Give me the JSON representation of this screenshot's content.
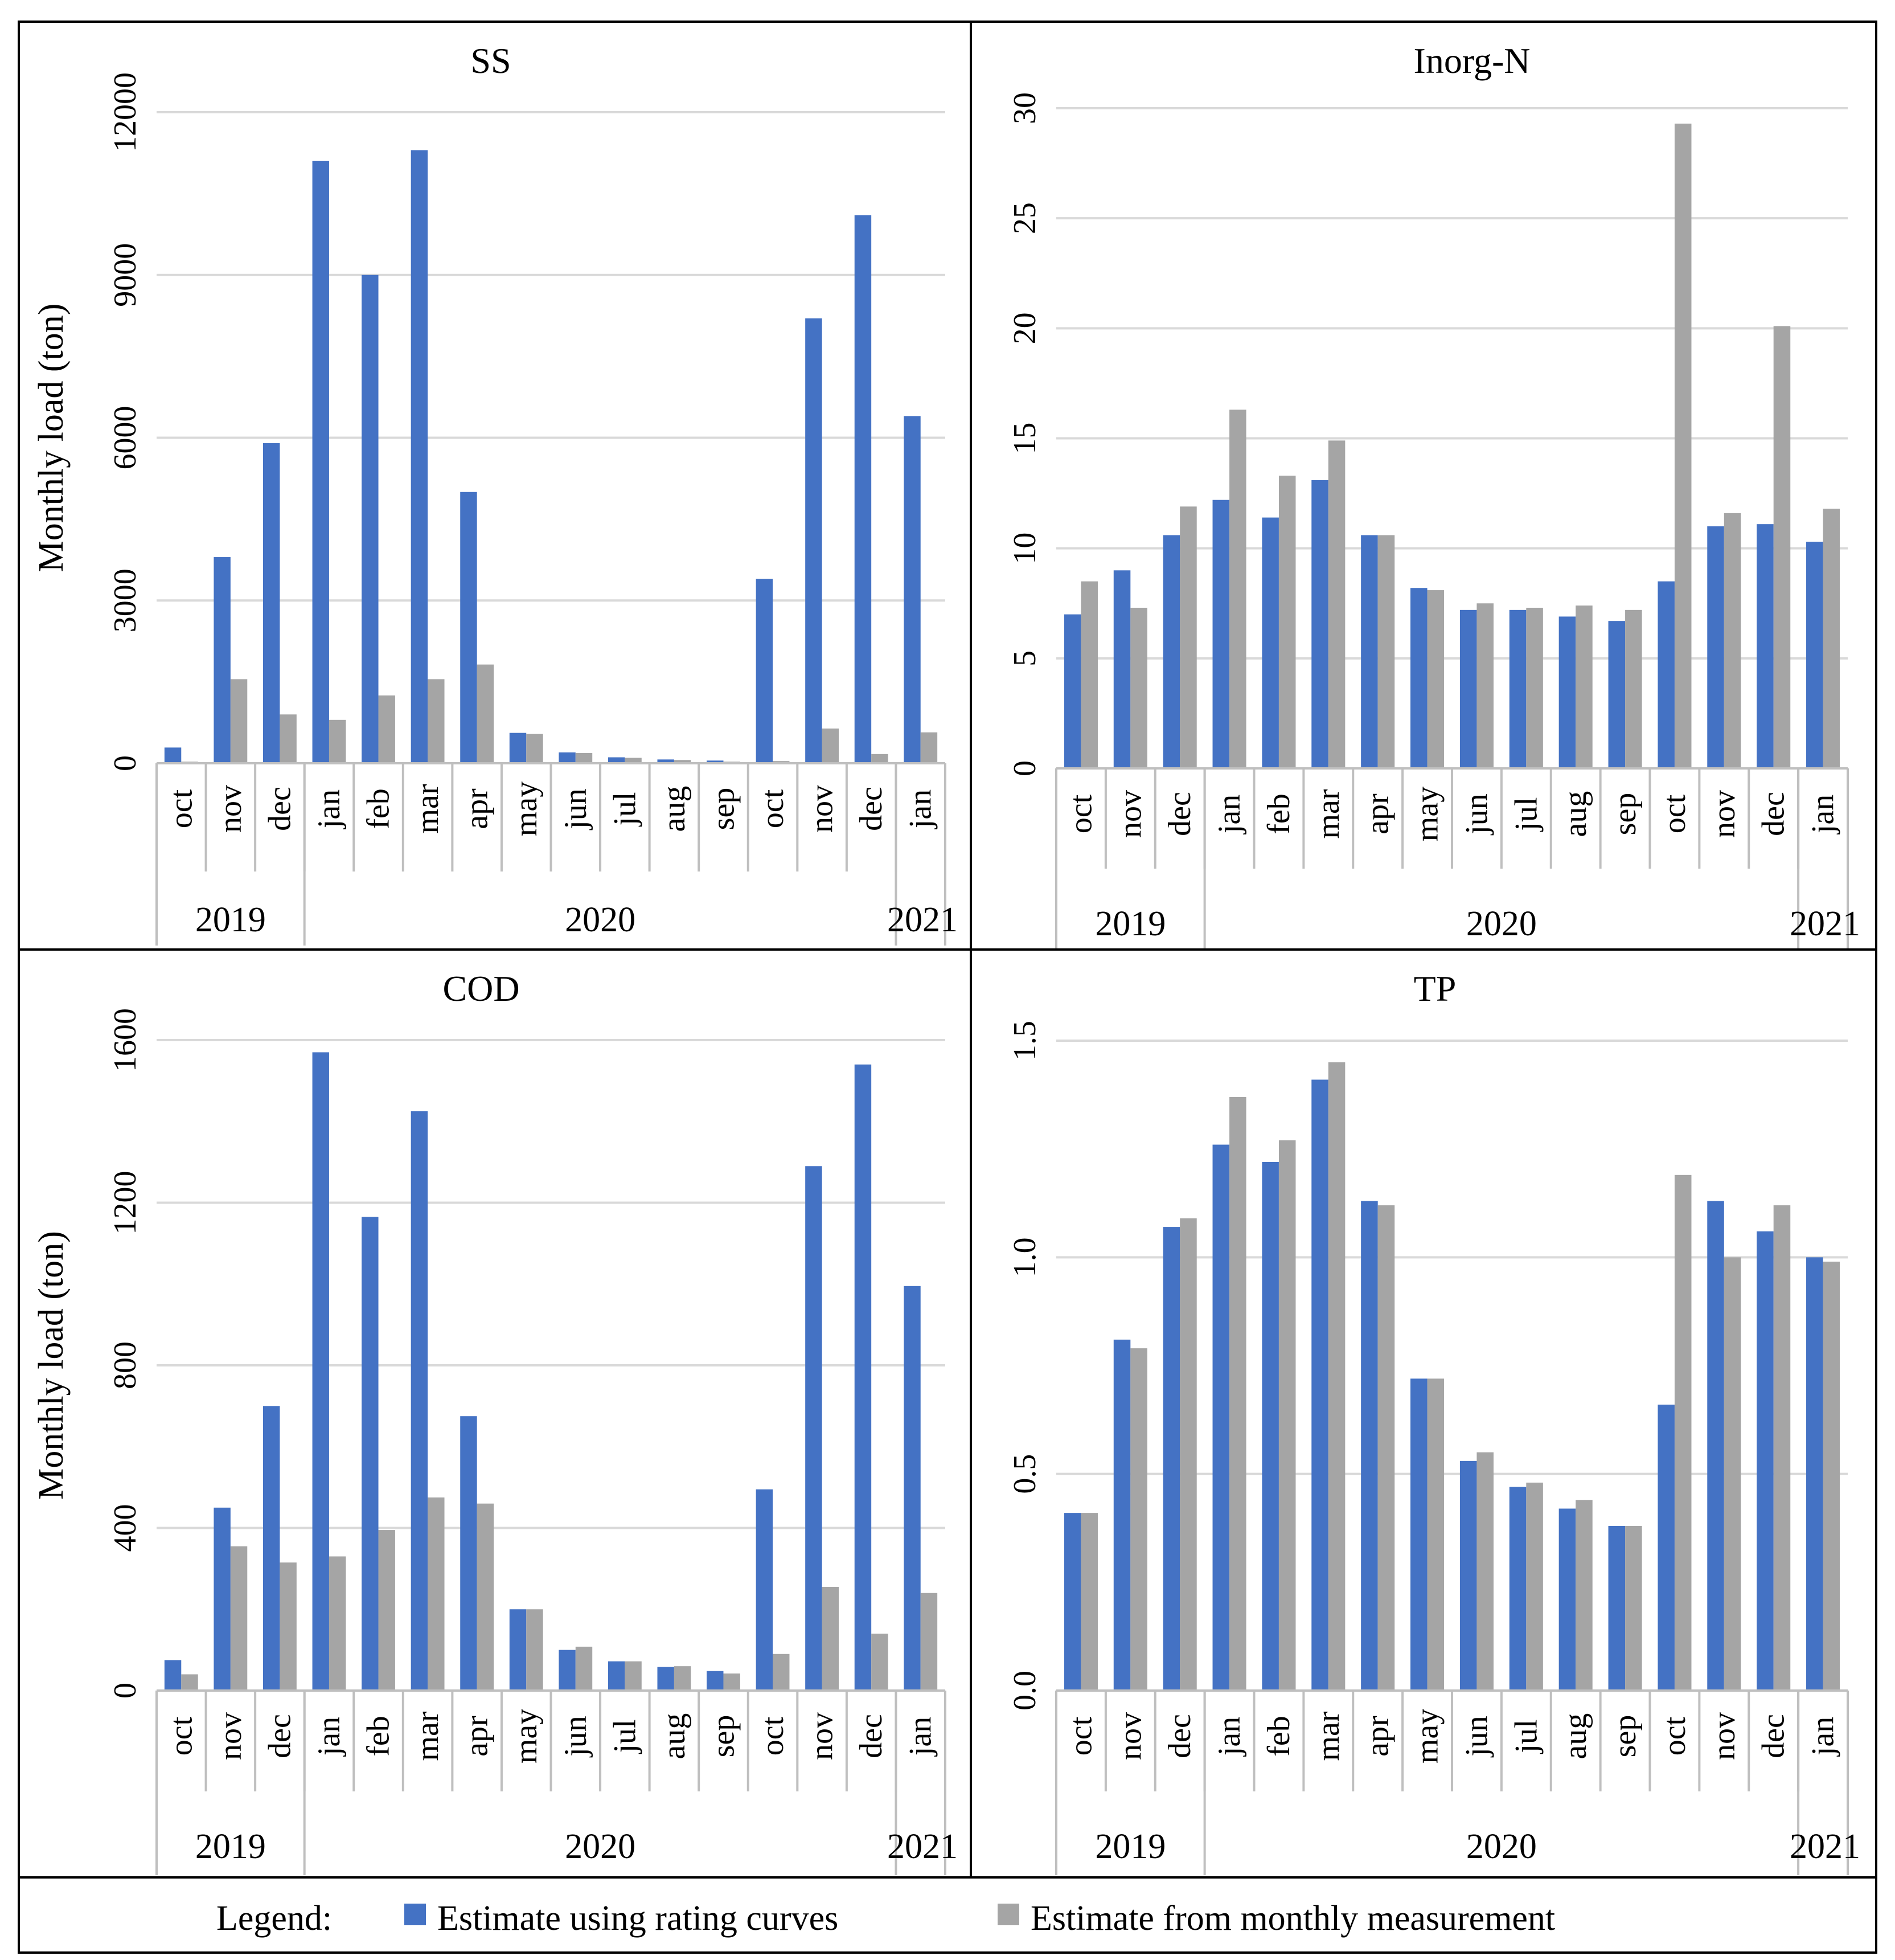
{
  "legend": {
    "label": "Legend:",
    "series": [
      {
        "name": "Estimate using rating curves",
        "color": "#4472C4"
      },
      {
        "name": "Estimate from monthly measurement",
        "color": "#A5A5A5"
      }
    ]
  },
  "chart_data": [
    {
      "type": "bar",
      "title": "SS",
      "ylabel": "Monthly load (ton)",
      "ylim": [
        0,
        12000
      ],
      "yticks": [
        0,
        3000,
        6000,
        9000,
        12000
      ],
      "ytick_labels": [
        "0",
        "3000",
        "6000",
        "9000",
        "12000"
      ],
      "categories": [
        "oct",
        "nov",
        "dec",
        "jan",
        "feb",
        "mar",
        "apr",
        "may",
        "jun",
        "jul",
        "aug",
        "sep",
        "oct",
        "nov",
        "dec",
        "jan"
      ],
      "years": [
        {
          "label": "2019",
          "start": 0,
          "end": 2
        },
        {
          "label": "2020",
          "start": 3,
          "end": 14
        },
        {
          "label": "2021",
          "start": 15,
          "end": 15
        }
      ],
      "series": [
        {
          "name": "Estimate using rating curves",
          "values": [
            290,
            3800,
            5900,
            11100,
            9000,
            11300,
            5000,
            560,
            200,
            110,
            70,
            50,
            3400,
            8200,
            10100,
            6400
          ]
        },
        {
          "name": "Estimate from monthly measurement",
          "values": [
            30,
            1550,
            900,
            800,
            1250,
            1550,
            1820,
            540,
            190,
            100,
            60,
            30,
            40,
            640,
            170,
            570
          ]
        }
      ],
      "grid": true
    },
    {
      "type": "bar",
      "title": "Inorg-N",
      "ylabel": "",
      "ylim": [
        0,
        30
      ],
      "yticks": [
        0,
        5,
        10,
        15,
        20,
        25,
        30
      ],
      "ytick_labels": [
        "0",
        "5",
        "10",
        "15",
        "20",
        "25",
        "30"
      ],
      "categories": [
        "oct",
        "nov",
        "dec",
        "jan",
        "feb",
        "mar",
        "apr",
        "may",
        "jun",
        "jul",
        "aug",
        "sep",
        "oct",
        "nov",
        "dec",
        "jan"
      ],
      "years": [
        {
          "label": "2019",
          "start": 0,
          "end": 2
        },
        {
          "label": "2020",
          "start": 3,
          "end": 14
        },
        {
          "label": "2021",
          "start": 15,
          "end": 15
        }
      ],
      "series": [
        {
          "name": "Estimate using rating curves",
          "values": [
            7.0,
            9.0,
            10.6,
            12.2,
            11.4,
            13.1,
            10.6,
            8.2,
            7.2,
            7.2,
            6.9,
            6.7,
            8.5,
            11.0,
            11.1,
            10.3
          ]
        },
        {
          "name": "Estimate from monthly measurement",
          "values": [
            8.5,
            7.3,
            11.9,
            16.3,
            13.3,
            14.9,
            10.6,
            8.1,
            7.5,
            7.3,
            7.4,
            7.2,
            29.3,
            11.6,
            20.1,
            11.8
          ]
        }
      ],
      "grid": true
    },
    {
      "type": "bar",
      "title": "COD",
      "ylabel": "Monthly load (ton)",
      "ylim": [
        0,
        1600
      ],
      "yticks": [
        0,
        400,
        800,
        1200,
        1600
      ],
      "ytick_labels": [
        "0",
        "400",
        "800",
        "1200",
        "1600"
      ],
      "categories": [
        "oct",
        "nov",
        "dec",
        "jan",
        "feb",
        "mar",
        "apr",
        "may",
        "jun",
        "jul",
        "aug",
        "sep",
        "oct",
        "nov",
        "dec",
        "jan"
      ],
      "years": [
        {
          "label": "2019",
          "start": 0,
          "end": 2
        },
        {
          "label": "2020",
          "start": 3,
          "end": 14
        },
        {
          "label": "2021",
          "start": 15,
          "end": 15
        }
      ],
      "series": [
        {
          "name": "Estimate using rating curves",
          "values": [
            75,
            450,
            700,
            1570,
            1165,
            1425,
            675,
            200,
            100,
            72,
            58,
            48,
            495,
            1290,
            1540,
            995
          ]
        },
        {
          "name": "Estimate from monthly measurement",
          "values": [
            40,
            355,
            315,
            330,
            395,
            475,
            460,
            200,
            108,
            72,
            60,
            42,
            90,
            255,
            140,
            240
          ]
        }
      ],
      "grid": true
    },
    {
      "type": "bar",
      "title": "TP",
      "ylabel": "",
      "ylim": [
        0,
        1.5
      ],
      "yticks": [
        0,
        0.5,
        1.0,
        1.5
      ],
      "ytick_labels": [
        "0.0",
        "0.5",
        "1.0",
        "1.5"
      ],
      "categories": [
        "oct",
        "nov",
        "dec",
        "jan",
        "feb",
        "mar",
        "apr",
        "may",
        "jun",
        "jul",
        "aug",
        "sep",
        "oct",
        "nov",
        "dec",
        "jan"
      ],
      "years": [
        {
          "label": "2019",
          "start": 0,
          "end": 2
        },
        {
          "label": "2020",
          "start": 3,
          "end": 14
        },
        {
          "label": "2021",
          "start": 15,
          "end": 15
        }
      ],
      "series": [
        {
          "name": "Estimate using rating curves",
          "values": [
            0.41,
            0.81,
            1.07,
            1.26,
            1.22,
            1.41,
            1.13,
            0.72,
            0.53,
            0.47,
            0.42,
            0.38,
            0.66,
            1.13,
            1.06,
            1.0
          ]
        },
        {
          "name": "Estimate from monthly measurement",
          "values": [
            0.41,
            0.79,
            1.09,
            1.37,
            1.27,
            1.45,
            1.12,
            0.72,
            0.55,
            0.48,
            0.44,
            0.38,
            1.19,
            1.0,
            1.12,
            0.99
          ]
        }
      ],
      "grid": true
    }
  ]
}
